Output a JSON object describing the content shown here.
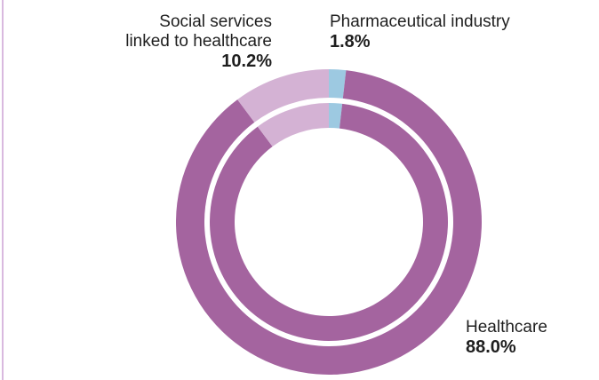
{
  "chart_data": {
    "type": "pie",
    "variant": "double-donut",
    "slices": [
      {
        "label": "Healthcare",
        "value_label": "88.0%",
        "value": 88.0,
        "color": "#a4649f"
      },
      {
        "label": "Social services linked to healthcare",
        "label_lines": [
          "Social services",
          "linked to healthcare"
        ],
        "value_label": "10.2%",
        "value": 10.2,
        "color": "#d4b2d4"
      },
      {
        "label": "Pharmaceutical industry",
        "value_label": "1.8%",
        "value": 1.8,
        "color": "#9dc9e1"
      }
    ],
    "rings": 2
  }
}
